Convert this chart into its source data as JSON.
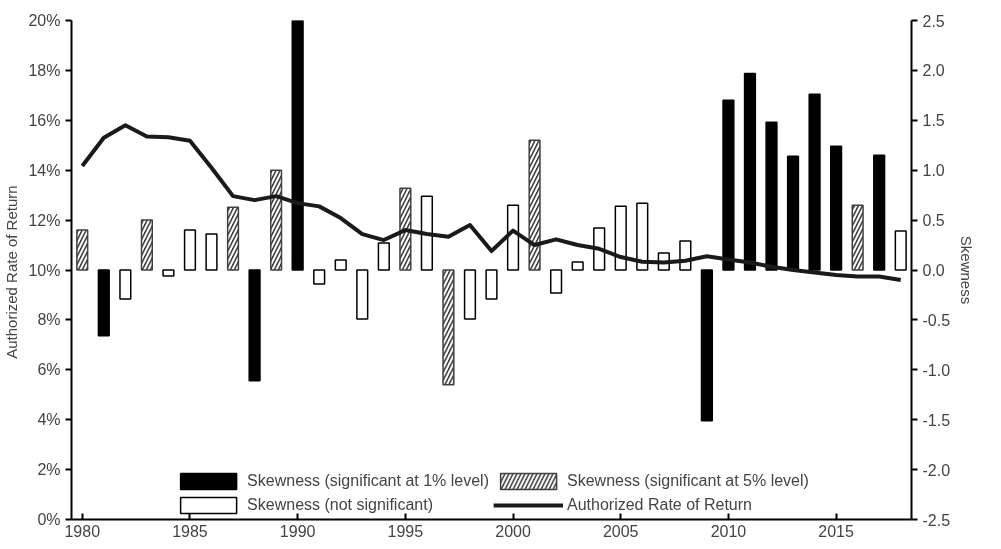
{
  "chart_data": {
    "type": "bar",
    "ylabel": "Authorized  Rate of Return",
    "y2label": "Skewness",
    "x": [
      1980,
      1981,
      1982,
      1983,
      1984,
      1985,
      1986,
      1987,
      1988,
      1989,
      1990,
      1991,
      1992,
      1993,
      1994,
      1995,
      1996,
      1997,
      1998,
      1999,
      2000,
      2001,
      2002,
      2003,
      2004,
      2005,
      2006,
      2007,
      2008,
      2009,
      2010,
      2011,
      2012,
      2013,
      2014,
      2015,
      2016,
      2017,
      2018
    ],
    "series": [
      {
        "name": "Skewness (significant at 1% level)",
        "color": "#000000",
        "axis": "y2",
        "values": [
          null,
          -0.66,
          null,
          null,
          null,
          null,
          null,
          null,
          -1.11,
          null,
          2.5,
          null,
          null,
          null,
          null,
          null,
          null,
          null,
          null,
          null,
          null,
          null,
          null,
          null,
          null,
          null,
          null,
          null,
          null,
          -1.51,
          1.7,
          1.97,
          1.48,
          1.14,
          1.76,
          1.24,
          null,
          1.15,
          null
        ]
      },
      {
        "name": "Skewness (significant at 5% level)",
        "color": "#404040",
        "axis": "y2",
        "values": [
          0.4,
          null,
          null,
          0.5,
          null,
          null,
          null,
          0.63,
          null,
          1.0,
          null,
          null,
          null,
          null,
          null,
          0.82,
          null,
          -1.15,
          null,
          null,
          null,
          1.3,
          null,
          null,
          null,
          null,
          null,
          null,
          null,
          null,
          null,
          null,
          null,
          null,
          null,
          null,
          0.65,
          null,
          null
        ]
      },
      {
        "name": "Skewness (not significant)",
        "color": "#ffffff",
        "axis": "y2",
        "values": [
          null,
          null,
          -0.29,
          null,
          -0.06,
          0.4,
          0.36,
          null,
          null,
          null,
          null,
          -0.14,
          0.1,
          -0.49,
          0.27,
          null,
          0.74,
          null,
          -0.49,
          -0.29,
          0.65,
          null,
          -0.23,
          0.08,
          0.42,
          0.64,
          0.67,
          0.17,
          0.29,
          null,
          null,
          null,
          null,
          null,
          null,
          null,
          null,
          null,
          0.39
        ]
      },
      {
        "name": "Authorized Rate of Return",
        "type": "line",
        "color": "#1a1a1a",
        "values": [
          14.17,
          15.3,
          15.8,
          15.35,
          15.32,
          15.18,
          14.1,
          12.96,
          12.8,
          12.96,
          12.68,
          12.55,
          12.08,
          11.44,
          11.2,
          11.6,
          11.44,
          11.33,
          11.8,
          10.76,
          11.58,
          11.0,
          11.23,
          11.0,
          10.85,
          10.52,
          10.33,
          10.3,
          10.37,
          10.55,
          10.42,
          10.3,
          10.13,
          10.0,
          9.9,
          9.8,
          9.74,
          9.74,
          9.6
        ]
      }
    ],
    "xlim": [
      1979.5,
      2018.5
    ],
    "xticks": [
      1980,
      1985,
      1990,
      1995,
      2000,
      2005,
      2010,
      2015
    ],
    "ylim": [
      0,
      20
    ],
    "yticks": [
      {
        "value": 0,
        "label": "0%"
      },
      {
        "value": 2,
        "label": "2%"
      },
      {
        "value": 4,
        "label": "4%"
      },
      {
        "value": 6,
        "label": "6%"
      },
      {
        "value": 8,
        "label": "8%"
      },
      {
        "value": 10,
        "label": "10%"
      },
      {
        "value": 12,
        "label": "12%"
      },
      {
        "value": 14,
        "label": "14%"
      },
      {
        "value": 16,
        "label": "16%"
      },
      {
        "value": 18,
        "label": "18%"
      },
      {
        "value": 20,
        "label": "20%"
      }
    ],
    "y2lim": [
      -2.5,
      2.5
    ],
    "y2ticks": [
      {
        "value": -2.5,
        "label": "-2.5"
      },
      {
        "value": -2.0,
        "label": "-2.0"
      },
      {
        "value": -1.5,
        "label": "-1.5"
      },
      {
        "value": -1.0,
        "label": "-1.0"
      },
      {
        "value": -0.5,
        "label": "-0.5"
      },
      {
        "value": 0,
        "label": "0.0"
      },
      {
        "value": 0.5,
        "label": "0.5"
      },
      {
        "value": 1.0,
        "label": "1.0"
      },
      {
        "value": 1.5,
        "label": "1.5"
      },
      {
        "value": 2.0,
        "label": "2.0"
      },
      {
        "value": 2.5,
        "label": "2.5"
      }
    ],
    "grid": false,
    "legend": "bottom",
    "marker": "none",
    "line_style": "solid"
  }
}
